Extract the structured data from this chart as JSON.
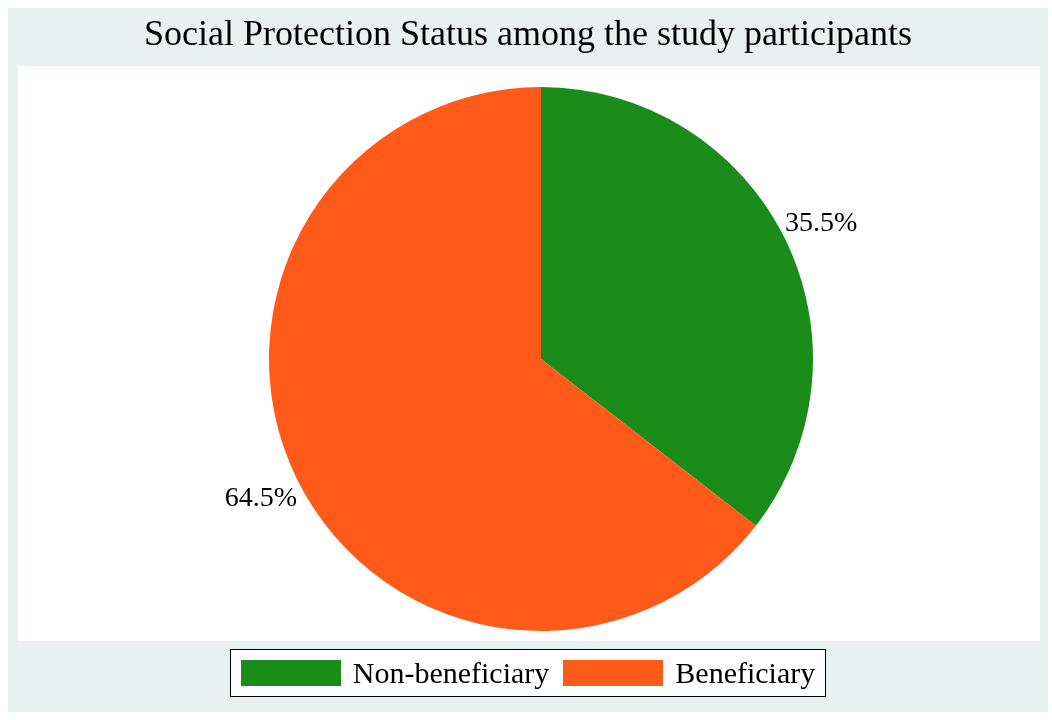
{
  "chart_data": {
    "type": "pie",
    "title": "Social Protection Status among the study participants",
    "categories": [
      "Non-beneficiary",
      "Beneficiary"
    ],
    "values": [
      35.5,
      64.5
    ],
    "colors": [
      "#1a8c1a",
      "#ff5a1a"
    ],
    "value_labels": [
      "35.5%",
      "64.5%"
    ],
    "legend": "bottom"
  }
}
